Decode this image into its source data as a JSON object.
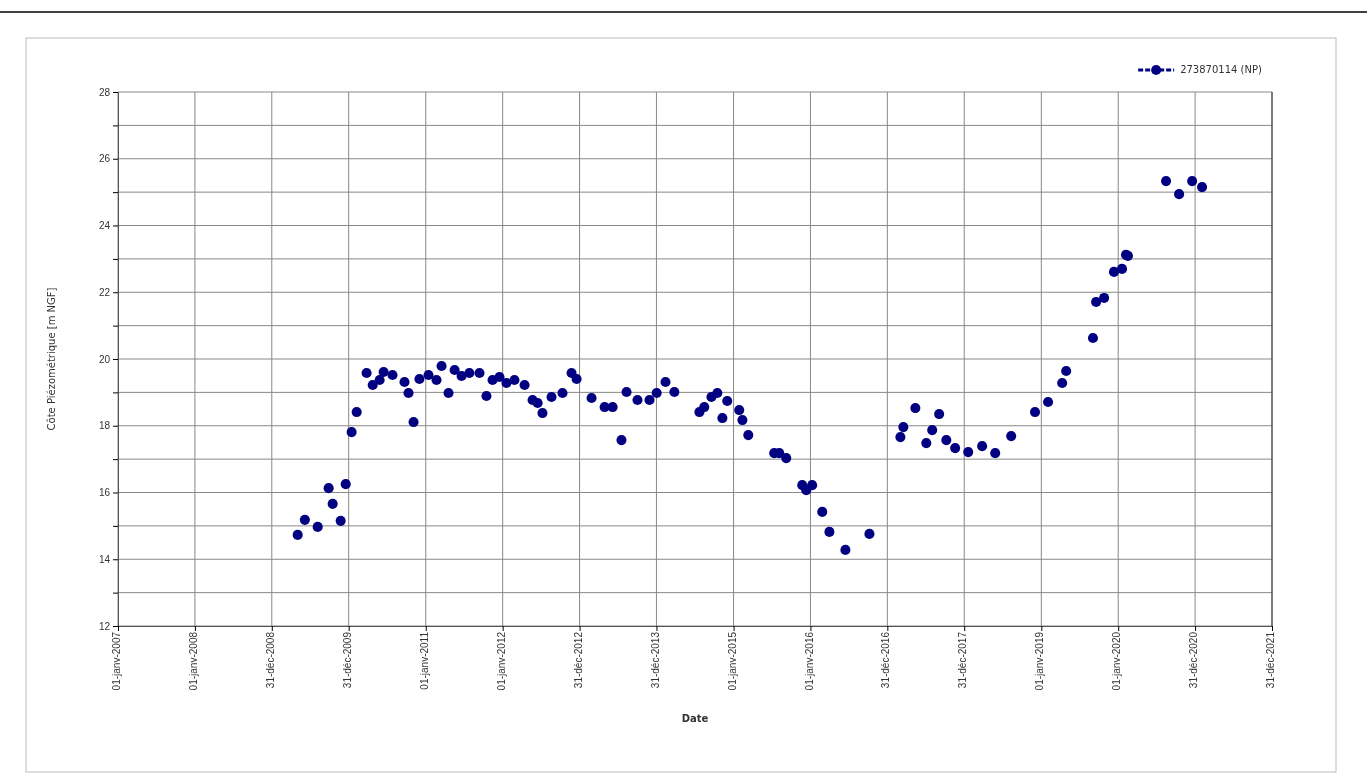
{
  "chart_data": {
    "type": "scatter",
    "xlabel": "Date",
    "ylabel": "Côte Piézométrique [m NGF]",
    "legend": "top right",
    "grid": true,
    "marker": "circle",
    "xlim": [
      "2007-01-01",
      "2021-12-31"
    ],
    "xticks": [
      {
        "value": "2007-01-01",
        "label": "01-janv-2007"
      },
      {
        "value": "2008-01-01",
        "label": "01-janv-2008"
      },
      {
        "value": "2008-12-31",
        "label": "31-déc-2008"
      },
      {
        "value": "2009-12-31",
        "label": "31-déc-2009"
      },
      {
        "value": "2011-01-01",
        "label": "01-janv-2011"
      },
      {
        "value": "2012-01-01",
        "label": "01-janv-2012"
      },
      {
        "value": "2012-12-31",
        "label": "31-déc-2012"
      },
      {
        "value": "2013-12-31",
        "label": "31-déc-2013"
      },
      {
        "value": "2015-01-01",
        "label": "01-janv-2015"
      },
      {
        "value": "2016-01-01",
        "label": "01-janv-2016"
      },
      {
        "value": "2016-12-31",
        "label": "31-déc-2016"
      },
      {
        "value": "2017-12-31",
        "label": "31-déc-2017"
      },
      {
        "value": "2019-01-01",
        "label": "01-janv-2019"
      },
      {
        "value": "2020-01-01",
        "label": "01-janv-2020"
      },
      {
        "value": "2020-12-31",
        "label": "31-déc-2020"
      },
      {
        "value": "2021-12-31",
        "label": "31-déc-2021"
      }
    ],
    "ylim": [
      12,
      28
    ],
    "yticks": [
      12,
      {
        "value": 13,
        "label": null
      },
      14,
      {
        "value": 15,
        "label": null
      },
      16,
      {
        "value": 17,
        "label": null
      },
      18,
      {
        "value": 19,
        "label": null
      },
      20,
      {
        "value": 21,
        "label": null
      },
      22,
      {
        "value": 23,
        "label": null
      },
      24,
      {
        "value": 25,
        "label": null
      },
      26,
      {
        "value": 27,
        "label": null
      },
      28
    ],
    "series": [
      {
        "name": "273870114 (NP)",
        "color": "#000080",
        "x": [
          "2009-05-03",
          "2009-06-06",
          "2009-08-06",
          "2009-09-27",
          "2009-10-16",
          "2009-11-23",
          "2009-12-17",
          "2010-01-14",
          "2010-02-07",
          "2010-03-26",
          "2010-04-24",
          "2010-05-27",
          "2010-06-15",
          "2010-07-27",
          "2010-09-22",
          "2010-10-11",
          "2010-11-04",
          "2010-12-02",
          "2011-01-14",
          "2011-02-21",
          "2011-03-17",
          "2011-04-19",
          "2011-05-18",
          "2011-06-20",
          "2011-07-27",
          "2011-09-13",
          "2011-10-16",
          "2011-11-14",
          "2011-12-17",
          "2012-01-19",
          "2012-02-26",
          "2012-04-14",
          "2012-05-22",
          "2012-06-15",
          "2012-07-08",
          "2012-08-20",
          "2012-10-11",
          "2012-11-23",
          "2012-12-17",
          "2013-02-26",
          "2013-04-29",
          "2013-06-06",
          "2013-07-18",
          "2013-08-11",
          "2013-10-02",
          "2013-11-28",
          "2014-01-01",
          "2014-02-12",
          "2014-03-26",
          "2014-07-23",
          "2014-08-15",
          "2014-09-18",
          "2014-10-16",
          "2014-11-09",
          "2014-12-02",
          "2015-01-28",
          "2015-02-12",
          "2015-03-12",
          "2015-07-13",
          "2015-08-06",
          "2015-09-08",
          "2015-11-23",
          "2015-12-12",
          "2016-01-09",
          "2016-02-26",
          "2016-03-31",
          "2016-06-15",
          "2016-10-07",
          "2017-03-03",
          "2017-03-17",
          "2017-05-13",
          "2017-07-04",
          "2017-08-01",
          "2017-09-03",
          "2017-10-07",
          "2017-11-18",
          "2018-01-19",
          "2018-03-26",
          "2018-05-27",
          "2018-08-11",
          "2018-12-02",
          "2019-02-02",
          "2019-04-10",
          "2019-04-29",
          "2019-09-03",
          "2019-09-18",
          "2019-10-26",
          "2019-12-12",
          "2020-01-19",
          "2020-02-07",
          "2020-02-16",
          "2020-08-15",
          "2020-10-16",
          "2020-12-17",
          "2021-02-02"
        ],
        "values": [
          14.73,
          15.18,
          14.97,
          16.13,
          15.66,
          15.15,
          16.25,
          17.81,
          18.41,
          19.58,
          19.22,
          19.37,
          19.61,
          19.52,
          19.31,
          18.98,
          18.11,
          19.4,
          19.52,
          19.37,
          19.79,
          18.98,
          19.67,
          19.49,
          19.58,
          19.58,
          18.89,
          19.37,
          19.46,
          19.28,
          19.37,
          19.22,
          18.77,
          18.68,
          18.38,
          18.86,
          18.98,
          19.58,
          19.4,
          18.83,
          18.56,
          18.56,
          17.57,
          19.01,
          18.77,
          18.77,
          18.98,
          19.31,
          19.01,
          18.41,
          18.56,
          18.86,
          18.98,
          18.23,
          18.74,
          18.47,
          18.17,
          17.72,
          17.18,
          17.18,
          17.03,
          16.22,
          16.07,
          16.22,
          15.42,
          14.82,
          14.28,
          14.76,
          17.66,
          17.96,
          18.53,
          17.48,
          17.87,
          18.35,
          17.57,
          17.33,
          17.21,
          17.39,
          17.18,
          17.69,
          18.41,
          18.71,
          19.28,
          19.64,
          20.63,
          21.71,
          21.83,
          22.61,
          22.7,
          23.12,
          23.09,
          25.33,
          24.94,
          25.33,
          25.15
        ]
      }
    ]
  }
}
